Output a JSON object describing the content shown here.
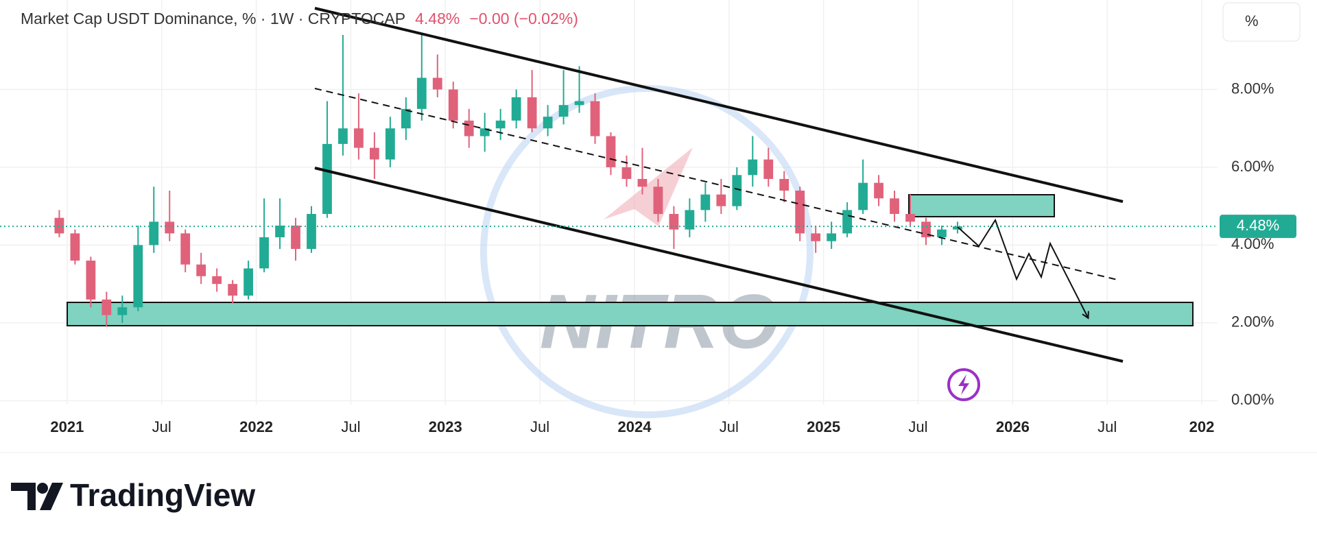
{
  "chart_data": {
    "type": "candlestick",
    "title": "Market Cap USDT Dominance, % · 1W · CRYPTOCAP",
    "change": "−0.00 (−0.02%)",
    "last_price": {
      "value": 4.48,
      "label": "4.48%"
    },
    "scale_button": "%",
    "watermark": "NITRO",
    "brand": "TradingView",
    "up_color": "#22ab94",
    "down_color": "#e0627a",
    "grid": true,
    "xlim": [
      "2020-09",
      "2027-02"
    ],
    "ylim": [
      -0.1,
      10.3
    ],
    "xticks": [
      {
        "value": "2021-01",
        "label": "2021"
      },
      {
        "value": "2021-07",
        "label": "Jul"
      },
      {
        "value": "2022-01",
        "label": "2022"
      },
      {
        "value": "2022-07",
        "label": "Jul"
      },
      {
        "value": "2023-01",
        "label": "2023"
      },
      {
        "value": "2023-07",
        "label": "Jul"
      },
      {
        "value": "2024-01",
        "label": "2024"
      },
      {
        "value": "2024-07",
        "label": "Jul"
      },
      {
        "value": "2025-01",
        "label": "2025"
      },
      {
        "value": "2025-07",
        "label": "Jul"
      },
      {
        "value": "2026-01",
        "label": "2026"
      },
      {
        "value": "2026-07",
        "label": "Jul"
      },
      {
        "value": "2027-01",
        "label": "202"
      }
    ],
    "yticks": [
      {
        "value": 0,
        "label": "0.00%"
      },
      {
        "value": 2,
        "label": "2.00%"
      },
      {
        "value": 4,
        "label": "4.00%"
      },
      {
        "value": 6,
        "label": "6.00%"
      },
      {
        "value": 8,
        "label": "8.00%"
      }
    ],
    "x": [
      "2020-12",
      "2021-01",
      "2021-02",
      "2021-03",
      "2021-04",
      "2021-05",
      "2021-06",
      "2021-07",
      "2021-08",
      "2021-09",
      "2021-10",
      "2021-11",
      "2021-12",
      "2022-01",
      "2022-02",
      "2022-03",
      "2022-04",
      "2022-05",
      "2022-06",
      "2022-07",
      "2022-08",
      "2022-09",
      "2022-10",
      "2022-11",
      "2022-12",
      "2023-01",
      "2023-02",
      "2023-03",
      "2023-04",
      "2023-05",
      "2023-06",
      "2023-07",
      "2023-08",
      "2023-09",
      "2023-10",
      "2023-11",
      "2023-12",
      "2024-01",
      "2024-02",
      "2024-03",
      "2024-04",
      "2024-05",
      "2024-06",
      "2024-07",
      "2024-08",
      "2024-09",
      "2024-10",
      "2024-11",
      "2024-12",
      "2025-01",
      "2025-02",
      "2025-03",
      "2025-04",
      "2025-05",
      "2025-06",
      "2025-07",
      "2025-08",
      "2025-09"
    ],
    "open": [
      4.7,
      4.3,
      3.6,
      2.6,
      2.2,
      2.4,
      4.0,
      4.6,
      4.3,
      3.5,
      3.2,
      3.0,
      2.7,
      3.4,
      4.2,
      4.5,
      3.9,
      4.8,
      6.6,
      7.0,
      6.5,
      6.2,
      7.0,
      7.5,
      8.3,
      8.0,
      7.2,
      6.8,
      7.0,
      7.2,
      7.8,
      7.0,
      7.3,
      7.6,
      7.7,
      6.8,
      6.0,
      5.7,
      5.5,
      4.8,
      4.4,
      4.9,
      5.3,
      5.0,
      5.8,
      6.2,
      5.7,
      5.4,
      4.3,
      4.1,
      4.3,
      4.9,
      5.6,
      5.2,
      4.8,
      4.6,
      4.2,
      4.4
    ],
    "high": [
      4.9,
      4.4,
      3.7,
      2.8,
      2.7,
      4.5,
      5.5,
      5.4,
      4.4,
      3.8,
      3.4,
      3.1,
      3.6,
      5.2,
      5.2,
      4.7,
      5.0,
      7.7,
      9.4,
      7.9,
      6.9,
      7.3,
      7.8,
      9.4,
      8.9,
      8.2,
      7.5,
      7.4,
      7.5,
      8.0,
      8.5,
      7.6,
      8.5,
      8.6,
      7.9,
      6.9,
      6.3,
      6.5,
      5.7,
      5.0,
      5.2,
      5.6,
      5.7,
      6.0,
      6.8,
      6.5,
      5.9,
      5.5,
      4.5,
      4.6,
      5.1,
      6.2,
      5.8,
      5.4,
      5.3,
      4.7,
      4.5,
      4.6
    ],
    "low": [
      4.2,
      3.5,
      2.4,
      1.9,
      2.0,
      2.3,
      3.8,
      4.1,
      3.3,
      3.0,
      2.8,
      2.5,
      2.6,
      3.3,
      3.9,
      3.6,
      3.8,
      4.7,
      6.3,
      6.2,
      5.7,
      6.0,
      6.7,
      7.2,
      7.8,
      7.0,
      6.5,
      6.4,
      6.7,
      7.0,
      6.9,
      6.8,
      7.1,
      7.4,
      6.6,
      5.8,
      5.5,
      5.3,
      4.6,
      3.9,
      4.2,
      4.6,
      4.8,
      4.9,
      5.5,
      5.5,
      5.1,
      4.1,
      3.8,
      3.9,
      4.2,
      4.8,
      5.0,
      4.6,
      4.5,
      4.0,
      4.0,
      4.3
    ],
    "close": [
      4.3,
      3.6,
      2.6,
      2.2,
      2.4,
      4.0,
      4.6,
      4.3,
      3.5,
      3.2,
      3.0,
      2.7,
      3.4,
      4.2,
      4.5,
      3.9,
      4.8,
      6.6,
      7.0,
      6.5,
      6.2,
      7.0,
      7.5,
      8.3,
      8.0,
      7.2,
      6.8,
      7.0,
      7.2,
      7.8,
      7.0,
      7.3,
      7.6,
      7.7,
      6.8,
      6.0,
      5.7,
      5.5,
      4.8,
      4.4,
      4.9,
      5.3,
      5.0,
      5.8,
      6.2,
      5.7,
      5.4,
      4.3,
      4.1,
      4.3,
      4.9,
      5.6,
      5.2,
      4.8,
      4.6,
      4.2,
      4.4,
      4.48
    ]
  }
}
